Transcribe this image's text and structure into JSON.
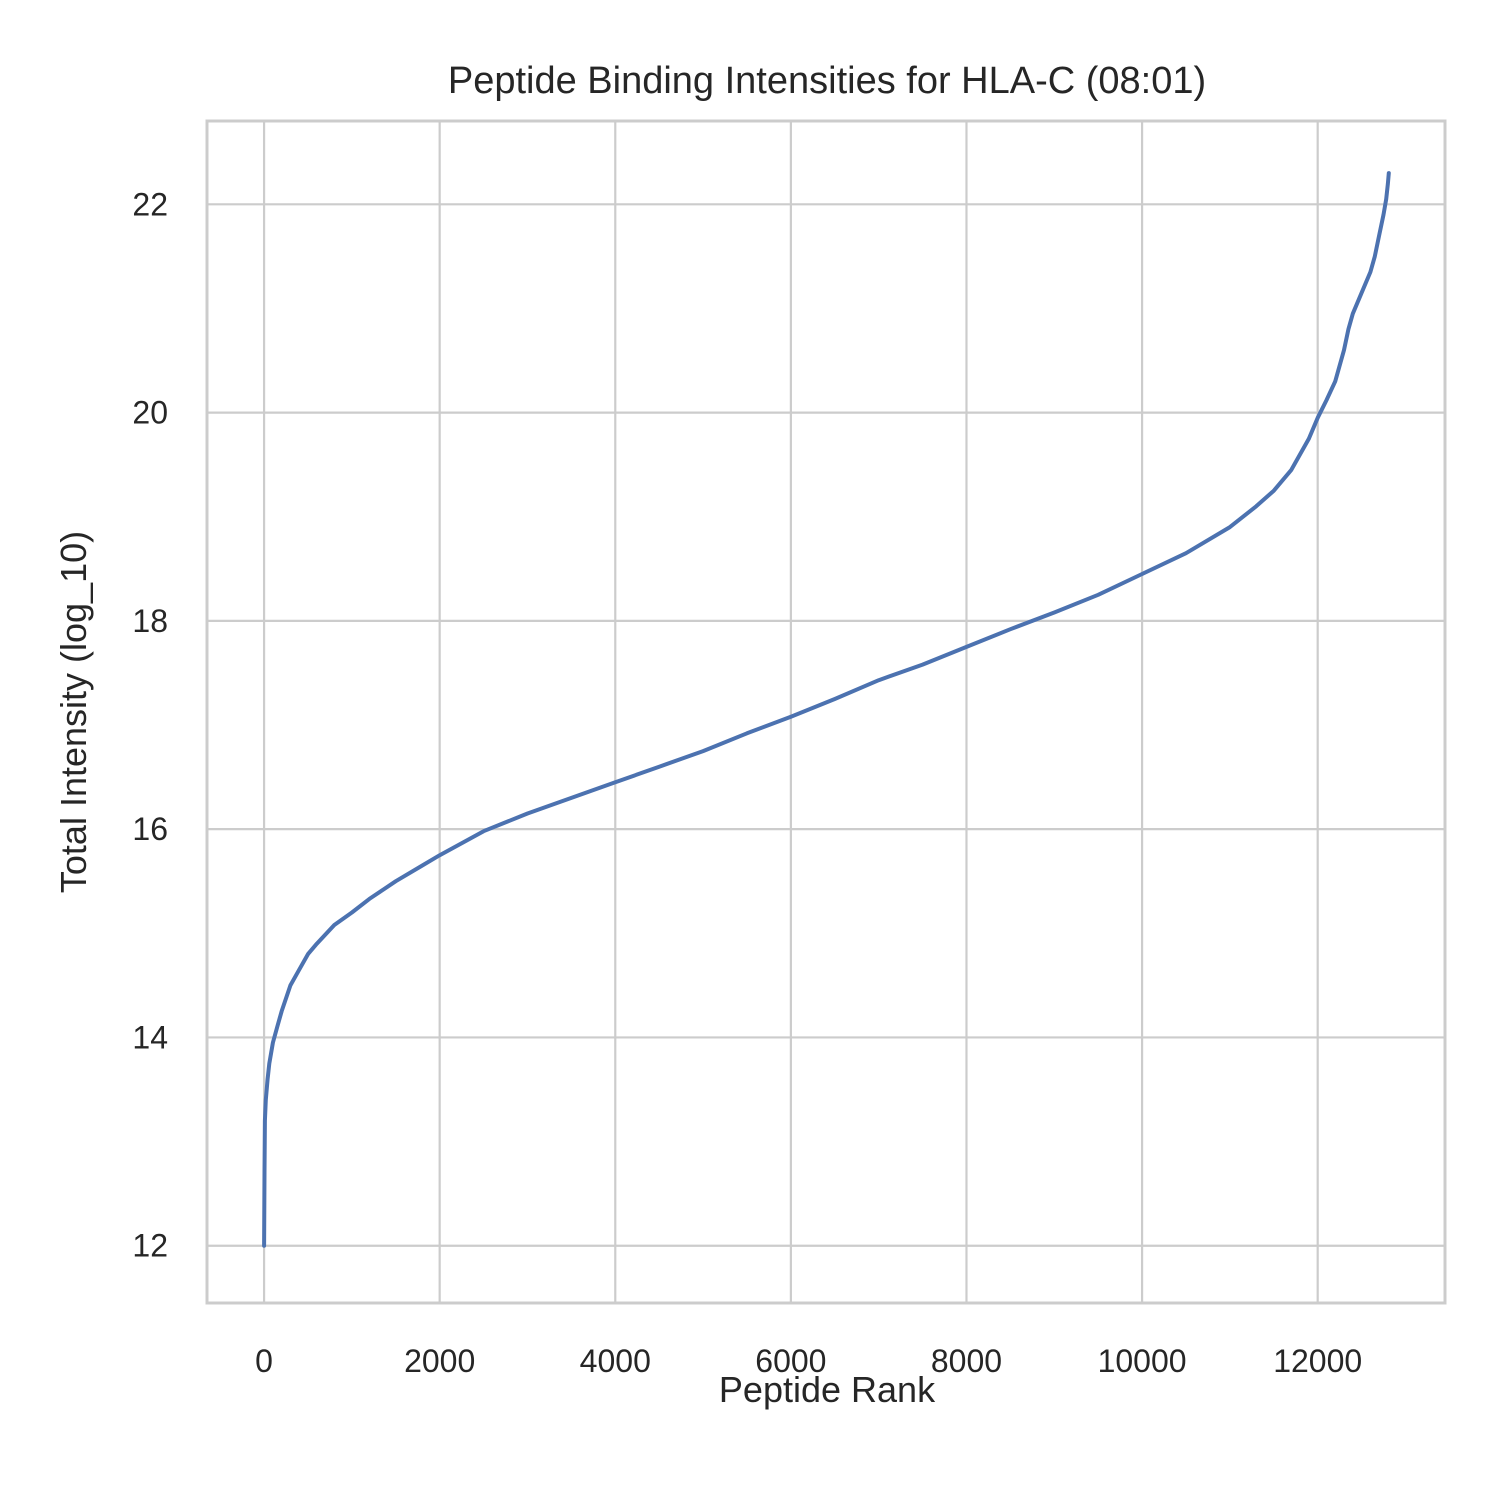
{
  "chart_data": {
    "type": "line",
    "title": "Peptide Binding Intensities for HLA-C (08:01)",
    "xlabel": "Peptide Rank",
    "ylabel": "Total Intensity (log_10)",
    "xlim": [
      -650,
      13450
    ],
    "ylim": [
      11.45,
      22.8
    ],
    "xticks": [
      0,
      2000,
      4000,
      6000,
      8000,
      10000,
      12000
    ],
    "yticks": [
      12,
      14,
      16,
      18,
      20,
      22
    ],
    "xtick_labels": [
      "0",
      "2000",
      "4000",
      "6000",
      "8000",
      "10000",
      "12000"
    ],
    "ytick_labels": [
      "12",
      "14",
      "16",
      "18",
      "20",
      "22"
    ],
    "grid": true,
    "legend": "none",
    "series": [
      {
        "color": "#4c72b0",
        "x": [
          0,
          5,
          10,
          20,
          40,
          60,
          80,
          100,
          150,
          200,
          300,
          400,
          500,
          600,
          800,
          1000,
          1200,
          1500,
          1800,
          2000,
          2500,
          3000,
          3500,
          4000,
          4500,
          5000,
          5500,
          6000,
          6500,
          7000,
          7500,
          8000,
          8500,
          9000,
          9500,
          10000,
          10500,
          11000,
          11300,
          11500,
          11700,
          11900,
          12000,
          12100,
          12200,
          12300,
          12350,
          12400,
          12500,
          12600,
          12650,
          12700,
          12750,
          12780,
          12800,
          12810
        ],
        "y": [
          12.0,
          12.7,
          13.2,
          13.4,
          13.6,
          13.75,
          13.85,
          13.95,
          14.1,
          14.25,
          14.5,
          14.65,
          14.8,
          14.9,
          15.08,
          15.2,
          15.33,
          15.5,
          15.65,
          15.75,
          15.98,
          16.15,
          16.3,
          16.45,
          16.6,
          16.75,
          16.92,
          17.08,
          17.25,
          17.43,
          17.58,
          17.75,
          17.92,
          18.08,
          18.25,
          18.45,
          18.65,
          18.9,
          19.1,
          19.25,
          19.45,
          19.75,
          19.95,
          20.12,
          20.3,
          20.6,
          20.8,
          20.95,
          21.15,
          21.35,
          21.5,
          21.7,
          21.9,
          22.05,
          22.2,
          22.3
        ]
      }
    ]
  }
}
